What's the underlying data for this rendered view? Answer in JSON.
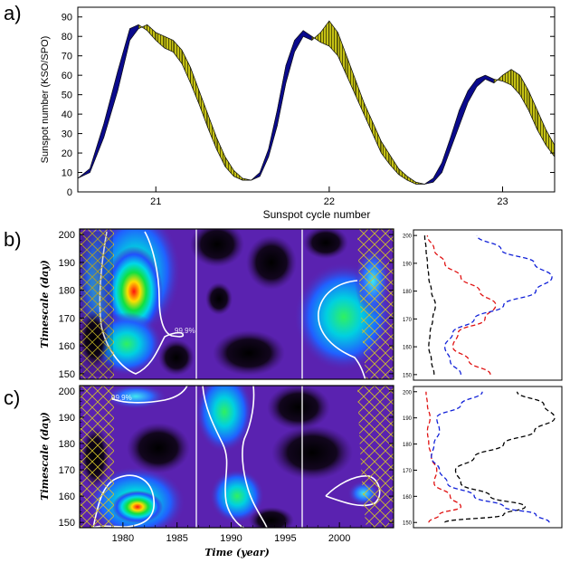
{
  "chart_data": [
    {
      "panel_label": "a)",
      "type": "area",
      "xlabel": "Sunspot cycle number",
      "ylabel": "Sunspot number (KSO/SPO)",
      "ylim": [
        0,
        95
      ],
      "xlim": [
        20.55,
        23.3
      ],
      "x_ticks": [
        21,
        22,
        23
      ],
      "y_ticks": [
        0,
        10,
        20,
        30,
        40,
        50,
        60,
        70,
        80,
        90
      ],
      "series": [
        {
          "name": "KSO",
          "color": "#0a0a8c",
          "x": [
            20.55,
            20.62,
            20.7,
            20.78,
            20.85,
            20.9,
            20.95,
            21.0,
            21.05,
            21.1,
            21.15,
            21.2,
            21.25,
            21.3,
            21.35,
            21.4,
            21.45,
            21.5,
            21.55,
            21.6,
            21.65,
            21.7,
            21.75,
            21.8,
            21.85,
            21.9,
            21.95,
            22.0,
            22.05,
            22.1,
            22.15,
            22.2,
            22.25,
            22.3,
            22.35,
            22.4,
            22.45,
            22.5,
            22.55,
            22.6,
            22.65,
            22.7,
            22.75,
            22.8,
            22.85,
            22.9,
            22.95,
            23.0,
            23.05,
            23.1,
            23.15,
            23.2,
            23.25,
            23.3
          ],
          "values": [
            7,
            12,
            35,
            62,
            84,
            86,
            83,
            78,
            74,
            72,
            66,
            56,
            45,
            33,
            22,
            13,
            8,
            6,
            6,
            10,
            22,
            42,
            65,
            78,
            83,
            80,
            77,
            75,
            70,
            60,
            50,
            40,
            30,
            20,
            14,
            9,
            6,
            4,
            4,
            7,
            15,
            28,
            42,
            52,
            58,
            60,
            58,
            57,
            55,
            50,
            42,
            32,
            24,
            18
          ]
        },
        {
          "name": "SPO",
          "color": "#c4c014",
          "x": [
            20.55,
            20.62,
            20.7,
            20.78,
            20.85,
            20.9,
            20.95,
            21.0,
            21.05,
            21.1,
            21.15,
            21.2,
            21.25,
            21.3,
            21.35,
            21.4,
            21.45,
            21.5,
            21.55,
            21.6,
            21.65,
            21.7,
            21.75,
            21.8,
            21.85,
            21.9,
            21.95,
            22.0,
            22.05,
            22.1,
            22.15,
            22.2,
            22.25,
            22.3,
            22.35,
            22.4,
            22.45,
            22.5,
            22.55,
            22.6,
            22.65,
            22.7,
            22.75,
            22.8,
            22.85,
            22.9,
            22.95,
            23.0,
            23.05,
            23.1,
            23.15,
            23.2,
            23.25,
            23.3
          ],
          "values": [
            7,
            10,
            28,
            52,
            78,
            84,
            86,
            82,
            80,
            78,
            73,
            64,
            52,
            40,
            28,
            18,
            11,
            7,
            6,
            8,
            18,
            34,
            56,
            72,
            80,
            78,
            82,
            88,
            82,
            70,
            58,
            46,
            36,
            26,
            19,
            12,
            8,
            5,
            4,
            5,
            10,
            22,
            34,
            46,
            54,
            58,
            56,
            60,
            63,
            60,
            52,
            42,
            32,
            24
          ]
        }
      ]
    },
    {
      "panel_label": "b)",
      "type": "heatmap",
      "ylabel": "Timescale (day)",
      "ylim": [
        148,
        202
      ],
      "y_ticks": [
        150,
        160,
        170,
        180,
        190,
        200
      ],
      "xlim": [
        1976,
        2005
      ],
      "contour_label": "99.9%",
      "side_profile": {
        "y_ticks": [
          150,
          160,
          170,
          180,
          190,
          200
        ],
        "series": [
          {
            "name": "black",
            "color": "#000000",
            "timescale": [
              150,
              155,
              160,
              165,
              170,
              175,
              180,
              185,
              190,
              195,
              200
            ],
            "values": [
              0.1,
              0.08,
              0.06,
              0.07,
              0.09,
              0.11,
              0.08,
              0.06,
              0.05,
              0.04,
              0.03
            ]
          },
          {
            "name": "red",
            "color": "#e01010",
            "timescale": [
              150,
              155,
              160,
              165,
              170,
              175,
              180,
              185,
              190,
              195,
              200
            ],
            "values": [
              0.52,
              0.36,
              0.24,
              0.28,
              0.48,
              0.56,
              0.44,
              0.3,
              0.18,
              0.1,
              0.05
            ]
          },
          {
            "name": "blue",
            "color": "#1020d8",
            "timescale": [
              150,
              155,
              160,
              165,
              170,
              175,
              180,
              185,
              190,
              195,
              200
            ],
            "values": [
              0.3,
              0.22,
              0.18,
              0.24,
              0.4,
              0.62,
              0.86,
              0.98,
              0.85,
              0.6,
              0.42
            ]
          }
        ]
      }
    },
    {
      "panel_label": "c)",
      "type": "heatmap",
      "xlabel": "Time (year)",
      "ylabel": "Timescale (day)",
      "ylim": [
        148,
        202
      ],
      "y_ticks": [
        150,
        160,
        170,
        180,
        190,
        200
      ],
      "xlim": [
        1976,
        2005
      ],
      "x_ticks": [
        1980,
        1985,
        1990,
        1995,
        2000
      ],
      "contour_label": "99.9%",
      "side_profile": {
        "y_ticks": [
          150,
          160,
          170,
          180,
          190,
          200
        ],
        "series": [
          {
            "name": "black",
            "color": "#000000",
            "timescale": [
              150,
              153,
              156,
              160,
              165,
              170,
              175,
              180,
              185,
              190,
              195,
              200
            ],
            "values": [
              0.18,
              0.62,
              0.78,
              0.52,
              0.3,
              0.26,
              0.4,
              0.62,
              0.85,
              1.0,
              0.92,
              0.72
            ]
          },
          {
            "name": "red",
            "color": "#e01010",
            "timescale": [
              150,
              153,
              156,
              160,
              165,
              170,
              175,
              180,
              185,
              190,
              195,
              200
            ],
            "values": [
              0.06,
              0.14,
              0.3,
              0.22,
              0.1,
              0.12,
              0.08,
              0.06,
              0.05,
              0.07,
              0.05,
              0.04
            ]
          },
          {
            "name": "blue",
            "color": "#1020d8",
            "timescale": [
              150,
              153,
              156,
              160,
              165,
              170,
              175,
              180,
              185,
              190,
              195,
              200
            ],
            "values": [
              0.96,
              0.86,
              0.62,
              0.4,
              0.2,
              0.14,
              0.08,
              0.1,
              0.14,
              0.12,
              0.3,
              0.46
            ]
          }
        ]
      }
    }
  ]
}
